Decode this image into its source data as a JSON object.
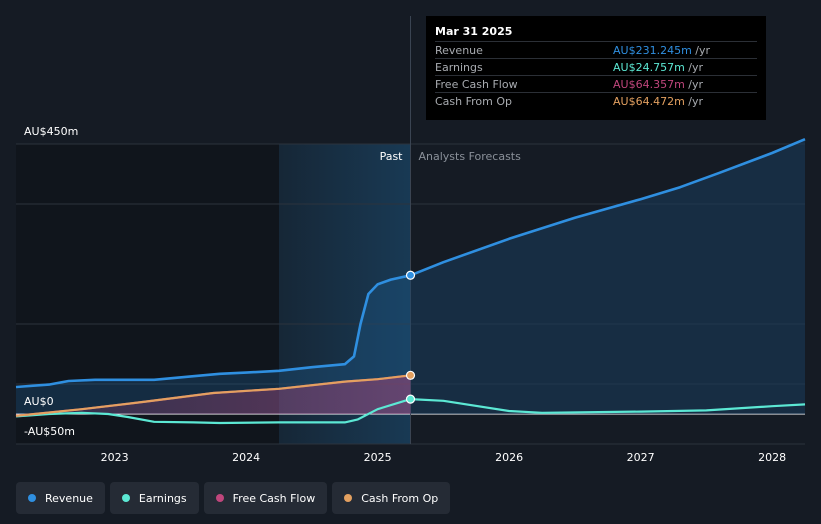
{
  "chart_data": {
    "type": "line",
    "title": "",
    "y_tick_labels": [
      "AU$450m",
      "AU$0",
      "-AU$50m"
    ],
    "ylim": [
      -50,
      450
    ],
    "x_ticks": [
      "2023",
      "2024",
      "2025",
      "2026",
      "2027",
      "2028"
    ],
    "x_tick_values": [
      2023,
      2024,
      2025,
      2026,
      2027,
      2028
    ],
    "xlim": [
      2022.25,
      2028.25
    ],
    "past_label": "Past",
    "forecast_label": "Analysts Forecasts",
    "divider_x": 2025.25,
    "past_shade_start": 2024.25,
    "grid": true,
    "legend_position": "bottom",
    "series": [
      {
        "name": "Revenue",
        "color": "#2f8fe0",
        "points": [
          [
            2022.25,
            45
          ],
          [
            2022.5,
            49
          ],
          [
            2022.65,
            55
          ],
          [
            2022.85,
            57
          ],
          [
            2023.1,
            57
          ],
          [
            2023.3,
            57
          ],
          [
            2023.6,
            63
          ],
          [
            2023.8,
            67
          ],
          [
            2024.0,
            69
          ],
          [
            2024.25,
            72
          ],
          [
            2024.5,
            78
          ],
          [
            2024.75,
            83
          ],
          [
            2024.82,
            96
          ],
          [
            2024.87,
            150
          ],
          [
            2024.93,
            200
          ],
          [
            2025.0,
            216
          ],
          [
            2025.1,
            224
          ],
          [
            2025.25,
            231.245
          ]
        ],
        "forecast": [
          [
            2025.25,
            231.245
          ],
          [
            2025.5,
            253
          ],
          [
            2026.0,
            292
          ],
          [
            2026.5,
            327
          ],
          [
            2027.0,
            358
          ],
          [
            2027.3,
            378
          ],
          [
            2027.6,
            402
          ],
          [
            2028.0,
            435
          ],
          [
            2028.25,
            458
          ]
        ]
      },
      {
        "name": "Earnings",
        "color": "#5ce8d4",
        "points": [
          [
            2022.25,
            -4
          ],
          [
            2022.5,
            0
          ],
          [
            2022.75,
            2
          ],
          [
            2022.95,
            0
          ],
          [
            2023.1,
            -5
          ],
          [
            2023.3,
            -13
          ],
          [
            2023.6,
            -14
          ],
          [
            2023.8,
            -15
          ],
          [
            2024.25,
            -14
          ],
          [
            2024.5,
            -14
          ],
          [
            2024.75,
            -14
          ],
          [
            2024.85,
            -9
          ],
          [
            2025.0,
            8
          ],
          [
            2025.25,
            24.757
          ]
        ],
        "forecast": [
          [
            2025.25,
            24.757
          ],
          [
            2025.5,
            22
          ],
          [
            2026.0,
            5
          ],
          [
            2026.25,
            2
          ],
          [
            2027.0,
            4
          ],
          [
            2027.5,
            6
          ],
          [
            2028.0,
            13
          ],
          [
            2028.25,
            16
          ]
        ]
      },
      {
        "name": "Free Cash Flow",
        "color": "#c0467c",
        "points": [
          [
            2022.25,
            -3
          ],
          [
            2022.75,
            8
          ],
          [
            2023.25,
            21
          ],
          [
            2023.75,
            35
          ],
          [
            2024.25,
            42
          ],
          [
            2024.75,
            54
          ],
          [
            2025.0,
            58
          ],
          [
            2025.25,
            64.357
          ]
        ],
        "forecast": []
      },
      {
        "name": "Cash From Op",
        "color": "#e3a060",
        "points": [
          [
            2022.25,
            -3
          ],
          [
            2022.75,
            8
          ],
          [
            2023.25,
            21
          ],
          [
            2023.75,
            35
          ],
          [
            2024.25,
            42
          ],
          [
            2024.75,
            54
          ],
          [
            2025.0,
            58
          ],
          [
            2025.25,
            64.472
          ]
        ],
        "forecast": []
      }
    ]
  },
  "tooltip": {
    "date": "Mar 31 2025",
    "rows": [
      {
        "label": "Revenue",
        "value": "AU$231.245m",
        "unit": "/yr",
        "color": "#2f8fe0"
      },
      {
        "label": "Earnings",
        "value": "AU$24.757m",
        "unit": "/yr",
        "color": "#5ce8d4"
      },
      {
        "label": "Free Cash Flow",
        "value": "AU$64.357m",
        "unit": "/yr",
        "color": "#c0467c"
      },
      {
        "label": "Cash From Op",
        "value": "AU$64.472m",
        "unit": "/yr",
        "color": "#e3a060"
      }
    ]
  },
  "legend": [
    {
      "label": "Revenue",
      "color": "#2f8fe0"
    },
    {
      "label": "Earnings",
      "color": "#5ce8d4"
    },
    {
      "label": "Free Cash Flow",
      "color": "#c0467c"
    },
    {
      "label": "Cash From Op",
      "color": "#e3a060"
    }
  ]
}
